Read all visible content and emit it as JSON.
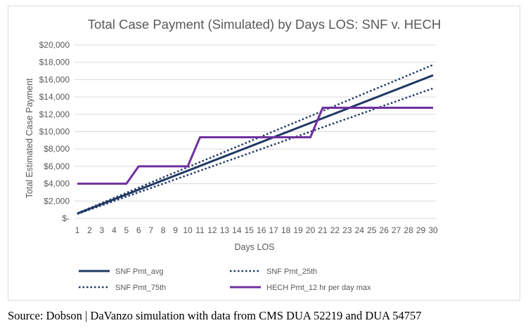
{
  "chart_data": {
    "type": "line",
    "title": "Total Case Payment (Simulated) by Days LOS: SNF v. HECH",
    "xlabel": "Days LOS",
    "ylabel": "Total Estimated Case Payment",
    "x": [
      1,
      2,
      3,
      4,
      5,
      6,
      7,
      8,
      9,
      10,
      11,
      12,
      13,
      14,
      15,
      16,
      17,
      18,
      19,
      20,
      21,
      22,
      23,
      24,
      25,
      26,
      27,
      28,
      29,
      30
    ],
    "ylim": [
      0,
      20000
    ],
    "yticks": [
      {
        "value": 0,
        "label": "$-"
      },
      {
        "value": 2000,
        "label": "$2,000"
      },
      {
        "value": 4000,
        "label": "$4,000"
      },
      {
        "value": 6000,
        "label": "$6,000"
      },
      {
        "value": 8000,
        "label": "$8,000"
      },
      {
        "value": 10000,
        "label": "$10,000"
      },
      {
        "value": 12000,
        "label": "$12,000"
      },
      {
        "value": 14000,
        "label": "$14,000"
      },
      {
        "value": 16000,
        "label": "$16,000"
      },
      {
        "value": 18000,
        "label": "$18,000"
      },
      {
        "value": 20000,
        "label": "$20,000"
      }
    ],
    "grid": true,
    "legend_position": "bottom",
    "series": [
      {
        "name": "SNF Pmt_avg",
        "color": "#1f3864",
        "style": "solid",
        "values": [
          550,
          1100,
          1650,
          2200,
          2750,
          3300,
          3850,
          4400,
          4950,
          5500,
          6050,
          6600,
          7150,
          7700,
          8250,
          8800,
          9350,
          9900,
          10450,
          11000,
          11550,
          12100,
          12650,
          13200,
          13750,
          14300,
          14850,
          15400,
          15950,
          16500
        ]
      },
      {
        "name": "SNF Pmt_25th",
        "color": "#1f3864",
        "style": "dotted",
        "values": [
          500,
          1000,
          1500,
          2000,
          2500,
          3000,
          3500,
          4000,
          4500,
          5000,
          5500,
          6000,
          6500,
          7000,
          7500,
          8000,
          8500,
          9000,
          9500,
          10000,
          10500,
          11000,
          11500,
          12000,
          12500,
          13000,
          13500,
          14000,
          14500,
          15000
        ]
      },
      {
        "name": "SNF Pmt_75th",
        "color": "#1f3864",
        "style": "dotted",
        "values": [
          590,
          1180,
          1770,
          2360,
          2950,
          3540,
          4130,
          4720,
          5310,
          5900,
          6490,
          7080,
          7670,
          8260,
          8850,
          9440,
          10030,
          10620,
          11210,
          11800,
          12390,
          12980,
          13570,
          14160,
          14750,
          15340,
          15930,
          16520,
          17110,
          17700
        ]
      },
      {
        "name": "HECH Pmt_12 hr per day max",
        "color": "#7030a0",
        "style": "solid",
        "values": [
          4000,
          4000,
          4000,
          4000,
          4000,
          6000,
          6000,
          6000,
          6000,
          6000,
          9350,
          9350,
          9350,
          9350,
          9350,
          9350,
          9350,
          9350,
          9350,
          9350,
          12750,
          12750,
          12750,
          12750,
          12750,
          12750,
          12750,
          12750,
          12750,
          12750
        ]
      }
    ]
  },
  "source": "Source: Dobson | DaVanzo simulation with data from CMS DUA 52219 and DUA 54757"
}
